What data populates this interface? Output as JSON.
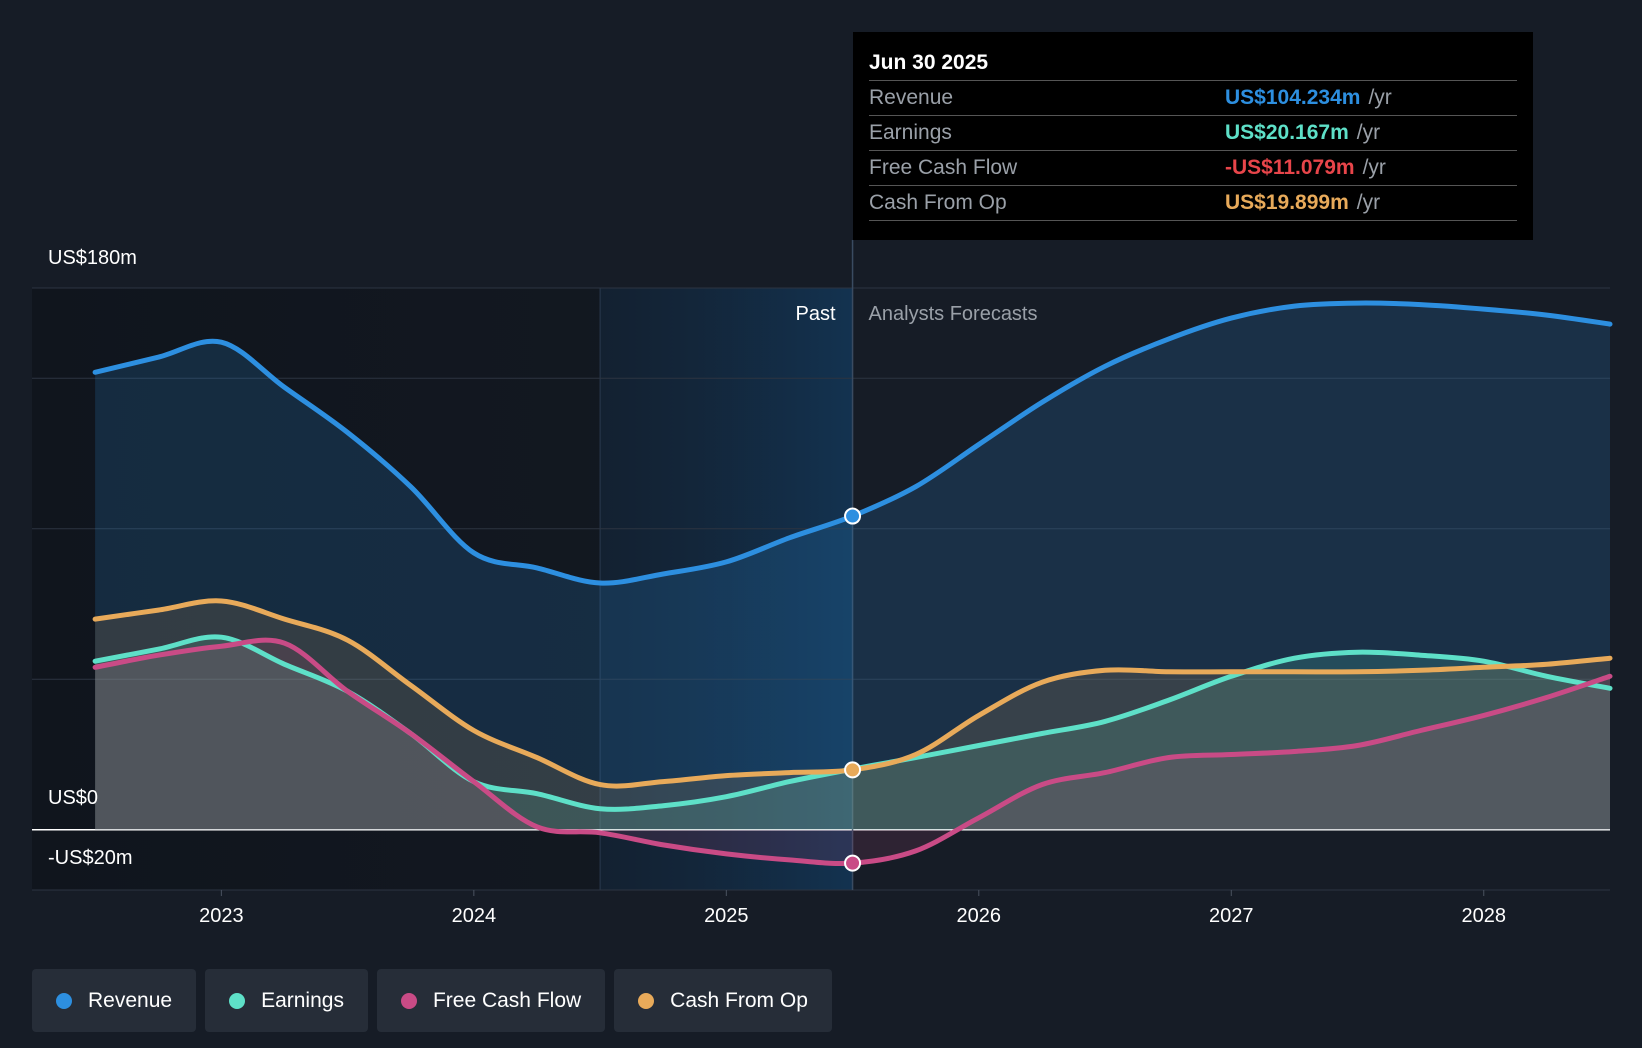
{
  "chart_data": {
    "type": "area",
    "title": "",
    "y_range": [
      -20,
      180
    ],
    "x_range": [
      2022.25,
      2028.5
    ],
    "y_tick_labels": [
      "US$180m",
      "US$0",
      "-US$20m"
    ],
    "x_tick_labels": [
      "2023",
      "2024",
      "2025",
      "2026",
      "2027",
      "2028"
    ],
    "x_ticks": [
      2023,
      2024,
      2025,
      2026,
      2027,
      2028
    ],
    "divider_x": 2025.5,
    "highlight_start_x": 2024.5,
    "past_label": "Past",
    "forecast_label": "Analysts Forecasts",
    "series": [
      {
        "name": "Revenue",
        "color": "#2d8fe0",
        "x": [
          2022.5,
          2022.75,
          2023.0,
          2023.25,
          2023.5,
          2023.75,
          2024.0,
          2024.25,
          2024.5,
          2024.75,
          2025.0,
          2025.25,
          2025.5,
          2025.75,
          2026.0,
          2026.25,
          2026.5,
          2026.75,
          2027.0,
          2027.25,
          2027.5,
          2027.75,
          2028.0,
          2028.25,
          2028.5
        ],
        "y": [
          152,
          157,
          162,
          147,
          132,
          114,
          92,
          87,
          82,
          85,
          89,
          97,
          104.234,
          114,
          128,
          142,
          154,
          163,
          170,
          174,
          175,
          174.5,
          173,
          171,
          168
        ]
      },
      {
        "name": "Earnings",
        "color": "#5ee0c8",
        "x": [
          2022.5,
          2022.75,
          2023.0,
          2023.25,
          2023.5,
          2023.75,
          2024.0,
          2024.25,
          2024.5,
          2024.75,
          2025.0,
          2025.25,
          2025.5,
          2025.75,
          2026.0,
          2026.25,
          2026.5,
          2026.75,
          2027.0,
          2027.25,
          2027.5,
          2027.75,
          2028.0,
          2028.25,
          2028.5
        ],
        "y": [
          56,
          60,
          64,
          55,
          46,
          32,
          16,
          12,
          7,
          8,
          11,
          16,
          20.167,
          24,
          28,
          32,
          36,
          43,
          51,
          57,
          59,
          58,
          56,
          51,
          47
        ]
      },
      {
        "name": "Free Cash Flow",
        "color": "#c94b86",
        "x": [
          2022.5,
          2022.75,
          2023.0,
          2023.25,
          2023.5,
          2023.75,
          2024.0,
          2024.25,
          2024.5,
          2024.75,
          2025.0,
          2025.25,
          2025.5,
          2025.75,
          2026.0,
          2026.25,
          2026.5,
          2026.75,
          2027.0,
          2027.25,
          2027.5,
          2027.75,
          2028.0,
          2028.25,
          2028.5
        ],
        "y": [
          54,
          58,
          61,
          62,
          46,
          32,
          16,
          1,
          -1,
          -5,
          -8,
          -10,
          -11.079,
          -7,
          4,
          15,
          19,
          24,
          25,
          26,
          28,
          33,
          38,
          44,
          51
        ]
      },
      {
        "name": "Cash From Op",
        "color": "#e8aa5a",
        "x": [
          2022.5,
          2022.75,
          2023.0,
          2023.25,
          2023.5,
          2023.75,
          2024.0,
          2024.25,
          2024.5,
          2024.75,
          2025.0,
          2025.25,
          2025.5,
          2025.75,
          2026.0,
          2026.25,
          2026.5,
          2026.75,
          2027.0,
          2027.25,
          2027.5,
          2027.75,
          2028.0,
          2028.25,
          2028.5
        ],
        "y": [
          70,
          73,
          76,
          70,
          63,
          48,
          33,
          24,
          15,
          16,
          18,
          19,
          19.899,
          25,
          38,
          49,
          53,
          52.5,
          52.5,
          52.5,
          52.5,
          53,
          54,
          55,
          57
        ]
      }
    ],
    "marker_x": 2025.5
  },
  "tooltip": {
    "date": "Jun 30 2025",
    "rows": [
      {
        "label": "Revenue",
        "value": "US$104.234m",
        "unit": "/yr",
        "color": "#2d8fe0"
      },
      {
        "label": "Earnings",
        "value": "US$20.167m",
        "unit": "/yr",
        "color": "#5ee0c8"
      },
      {
        "label": "Free Cash Flow",
        "value": "-US$11.079m",
        "unit": "/yr",
        "color": "#e8454a"
      },
      {
        "label": "Cash From Op",
        "value": "US$19.899m",
        "unit": "/yr",
        "color": "#e8aa5a"
      }
    ]
  },
  "legend": [
    {
      "label": "Revenue",
      "color": "#2d8fe0"
    },
    {
      "label": "Earnings",
      "color": "#5ee0c8"
    },
    {
      "label": "Free Cash Flow",
      "color": "#c94b86"
    },
    {
      "label": "Cash From Op",
      "color": "#e8aa5a"
    }
  ]
}
